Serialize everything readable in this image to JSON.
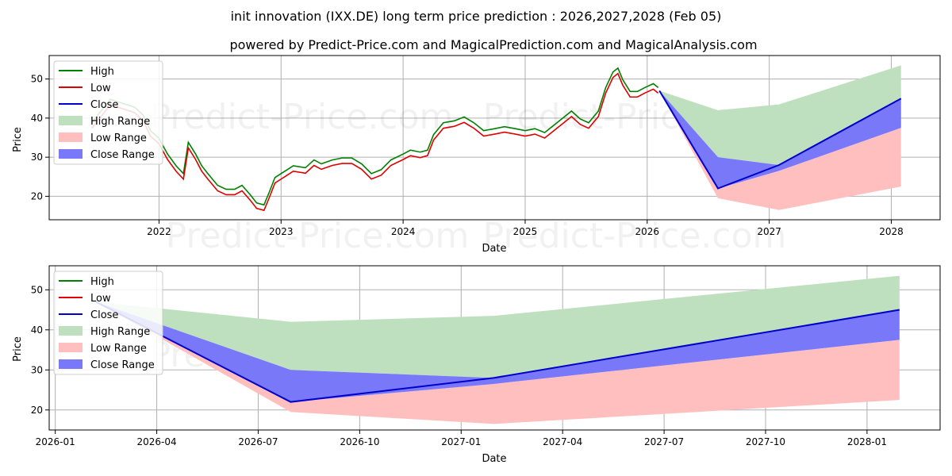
{
  "header": {
    "title": "init innovation (IXX.DE) long term price prediction : 2026,2027,2028 (Feb 05)",
    "subtitle": "powered by Predict-Price.com and MagicalPrediction.com and MagicalAnalysis.com"
  },
  "watermark": "Predict-Price.com",
  "colors": {
    "high": "#008000",
    "low": "#e00000",
    "close": "#0000cc",
    "high_range": "#bfe0bf",
    "low_range": "#ffbfbf",
    "close_range": "#7878f8",
    "grid": "#b0b0b0"
  },
  "legend": {
    "high": "High",
    "low": "Low",
    "close": "Close",
    "high_range": "High Range",
    "low_range": "Low Range",
    "close_range": "Close Range"
  },
  "chart_data": [
    {
      "type": "line",
      "name": "history-and-forecast",
      "xlabel": "Date",
      "ylabel": "Price",
      "xlim": [
        2021.1,
        2028.4
      ],
      "ylim": [
        14,
        56
      ],
      "x_ticks": [
        {
          "value": 2022.0,
          "label": "2022"
        },
        {
          "value": 2023.0,
          "label": "2023"
        },
        {
          "value": 2024.0,
          "label": "2024"
        },
        {
          "value": 2025.0,
          "label": "2025"
        },
        {
          "value": 2026.0,
          "label": "2026"
        },
        {
          "value": 2027.0,
          "label": "2027"
        },
        {
          "value": 2028.0,
          "label": "2028"
        }
      ],
      "y_ticks": [
        20,
        30,
        40,
        50
      ],
      "history_close_points": [
        [
          2021.45,
          38
        ],
        [
          2021.55,
          42
        ],
        [
          2021.6,
          44
        ],
        [
          2021.7,
          43
        ],
        [
          2021.8,
          42
        ],
        [
          2021.87,
          40
        ],
        [
          2021.93,
          36
        ],
        [
          2022.0,
          34
        ],
        [
          2022.07,
          30
        ],
        [
          2022.14,
          27
        ],
        [
          2022.2,
          25
        ],
        [
          2022.24,
          33
        ],
        [
          2022.3,
          30
        ],
        [
          2022.35,
          27
        ],
        [
          2022.4,
          25
        ],
        [
          2022.48,
          22
        ],
        [
          2022.55,
          21
        ],
        [
          2022.62,
          21
        ],
        [
          2022.68,
          22
        ],
        [
          2022.75,
          19.5
        ],
        [
          2022.8,
          17.5
        ],
        [
          2022.86,
          17
        ],
        [
          2022.9,
          20
        ],
        [
          2022.95,
          24
        ],
        [
          2023.0,
          25
        ],
        [
          2023.05,
          26
        ],
        [
          2023.1,
          27
        ],
        [
          2023.2,
          26.5
        ],
        [
          2023.27,
          28.5
        ],
        [
          2023.33,
          27.5
        ],
        [
          2023.42,
          28.5
        ],
        [
          2023.5,
          29
        ],
        [
          2023.58,
          29
        ],
        [
          2023.66,
          27.5
        ],
        [
          2023.74,
          25
        ],
        [
          2023.82,
          26
        ],
        [
          2023.9,
          28.5
        ],
        [
          2024.0,
          30
        ],
        [
          2024.06,
          31
        ],
        [
          2024.14,
          30.5
        ],
        [
          2024.2,
          31
        ],
        [
          2024.25,
          35
        ],
        [
          2024.33,
          38
        ],
        [
          2024.42,
          38.5
        ],
        [
          2024.5,
          39.5
        ],
        [
          2024.58,
          38
        ],
        [
          2024.66,
          36
        ],
        [
          2024.75,
          36.5
        ],
        [
          2024.83,
          37
        ],
        [
          2024.92,
          36.5
        ],
        [
          2025.0,
          36
        ],
        [
          2025.08,
          36.5
        ],
        [
          2025.16,
          35.5
        ],
        [
          2025.22,
          37
        ],
        [
          2025.3,
          39
        ],
        [
          2025.38,
          41
        ],
        [
          2025.45,
          39
        ],
        [
          2025.52,
          38
        ],
        [
          2025.6,
          41
        ],
        [
          2025.66,
          47
        ],
        [
          2025.72,
          51
        ],
        [
          2025.76,
          52
        ],
        [
          2025.8,
          49
        ],
        [
          2025.86,
          46
        ],
        [
          2025.92,
          46
        ],
        [
          2025.98,
          47
        ],
        [
          2026.05,
          48
        ],
        [
          2026.09,
          47
        ]
      ],
      "forecast": {
        "dates": [
          "2026-02-05",
          "2026-08-01",
          "2027-02-01",
          "2028-02-01"
        ],
        "x": [
          2026.1,
          2026.58,
          2027.08,
          2028.08
        ],
        "close": [
          47,
          22,
          28,
          45
        ],
        "close_range_upper": [
          47,
          30,
          28,
          45
        ],
        "close_range_lower": [
          47,
          22,
          26.5,
          37.5
        ],
        "high_range_upper": [
          47,
          42,
          43.5,
          53.5
        ],
        "low_range_lower": [
          47,
          19.5,
          16.5,
          22.5
        ]
      }
    },
    {
      "type": "line",
      "name": "forecast-zoom",
      "xlabel": "Date",
      "ylabel": "Price",
      "x_tick_labels": [
        "2026-01",
        "2026-04",
        "2026-07",
        "2026-10",
        "2027-01",
        "2027-04",
        "2027-07",
        "2027-10",
        "2028-01"
      ],
      "y_ticks": [
        20,
        30,
        40,
        50
      ],
      "ylim": [
        15,
        56
      ]
    }
  ]
}
